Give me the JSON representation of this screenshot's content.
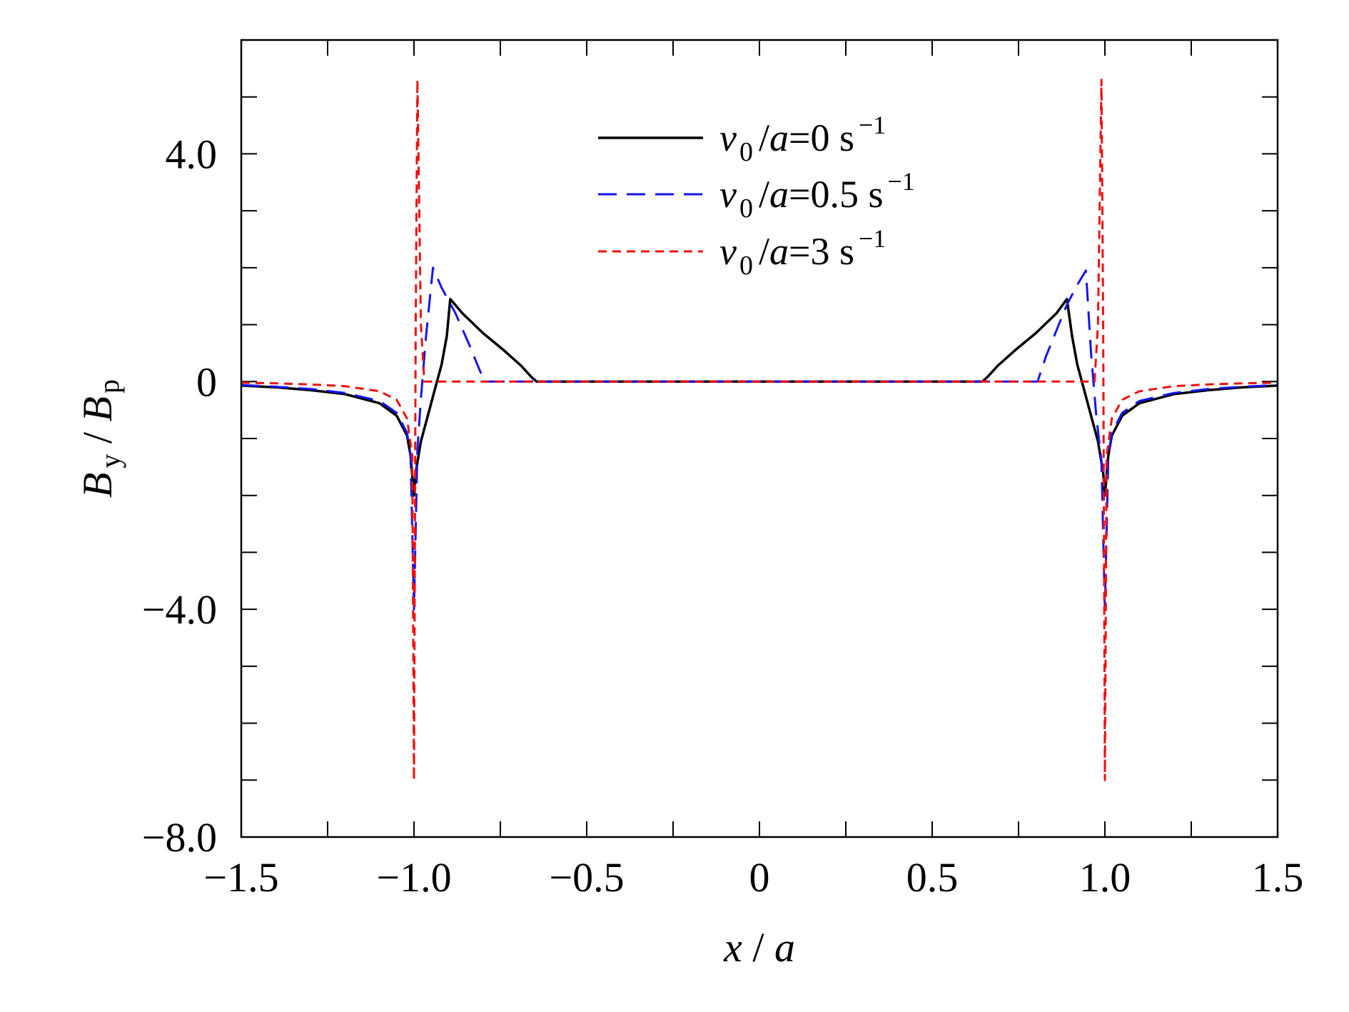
{
  "chart_data": {
    "type": "line",
    "xlabel": {
      "var": "x",
      "sep": " / ",
      "den": "a"
    },
    "ylabel": {
      "var": "B",
      "var_sub": "y",
      "sep": " / ",
      "den": "B",
      "den_sub": "p"
    },
    "xlim": [
      -1.5,
      1.5
    ],
    "ylim": [
      -8.0,
      6.0
    ],
    "x_ticks": [
      {
        "value": -1.5,
        "label": "−1.5"
      },
      {
        "value": -1.0,
        "label": "−1.0"
      },
      {
        "value": -0.5,
        "label": "−0.5"
      },
      {
        "value": 0,
        "label": "0"
      },
      {
        "value": 0.5,
        "label": "0.5"
      },
      {
        "value": 1.0,
        "label": "1.0"
      },
      {
        "value": 1.5,
        "label": "1.5"
      }
    ],
    "x_minor_ticks": [
      -1.25,
      -0.75,
      -0.25,
      0.25,
      0.75,
      1.25
    ],
    "y_ticks": [
      {
        "value": 4.0,
        "label": "4.0"
      },
      {
        "value": 0,
        "label": "0"
      },
      {
        "value": -4.0,
        "label": "−4.0"
      },
      {
        "value": -8.0,
        "label": "−8.0"
      }
    ],
    "y_minor_ticks": [
      5,
      3,
      2,
      1,
      -1,
      -2,
      -3,
      -5,
      -6,
      -7
    ],
    "grid": false,
    "legend_position": "top-center",
    "series": [
      {
        "legend": {
          "v": "v",
          "sub": "0",
          "mid": "/",
          "a": "a",
          "eq": "=0 s",
          "sup": "−1"
        },
        "color": "#000000",
        "dash": "solid",
        "points": [
          [
            -1.5,
            -0.07
          ],
          [
            -1.4,
            -0.1
          ],
          [
            -1.3,
            -0.15
          ],
          [
            -1.2,
            -0.22
          ],
          [
            -1.1,
            -0.38
          ],
          [
            -1.05,
            -0.6
          ],
          [
            -1.02,
            -0.95
          ],
          [
            -1.01,
            -1.3
          ],
          [
            -1.0,
            -2.0
          ],
          [
            -0.995,
            -1.6
          ],
          [
            -0.98,
            -1.05
          ],
          [
            -0.96,
            -0.6
          ],
          [
            -0.94,
            -0.15
          ],
          [
            -0.92,
            0.3
          ],
          [
            -0.905,
            0.8
          ],
          [
            -0.895,
            1.45
          ],
          [
            -0.86,
            1.2
          ],
          [
            -0.8,
            0.85
          ],
          [
            -0.74,
            0.55
          ],
          [
            -0.69,
            0.28
          ],
          [
            -0.66,
            0.08
          ],
          [
            -0.645,
            0.0
          ],
          [
            0.0,
            0.0
          ],
          [
            0.645,
            0.0
          ],
          [
            0.66,
            0.08
          ],
          [
            0.69,
            0.28
          ],
          [
            0.74,
            0.55
          ],
          [
            0.8,
            0.85
          ],
          [
            0.86,
            1.2
          ],
          [
            0.89,
            1.45
          ],
          [
            0.905,
            0.8
          ],
          [
            0.92,
            0.3
          ],
          [
            0.94,
            -0.15
          ],
          [
            0.96,
            -0.6
          ],
          [
            0.98,
            -1.05
          ],
          [
            0.995,
            -1.6
          ],
          [
            1.0,
            -2.0
          ],
          [
            1.01,
            -1.3
          ],
          [
            1.02,
            -0.95
          ],
          [
            1.05,
            -0.6
          ],
          [
            1.1,
            -0.38
          ],
          [
            1.2,
            -0.22
          ],
          [
            1.3,
            -0.15
          ],
          [
            1.4,
            -0.1
          ],
          [
            1.5,
            -0.07
          ]
        ]
      },
      {
        "legend": {
          "v": "v",
          "sub": "0",
          "mid": "/",
          "a": "a",
          "eq": "=0.5 s",
          "sup": "−1"
        },
        "color": "#1515ee",
        "dash": "26,14",
        "points": [
          [
            -1.5,
            -0.06
          ],
          [
            -1.4,
            -0.09
          ],
          [
            -1.3,
            -0.13
          ],
          [
            -1.2,
            -0.2
          ],
          [
            -1.1,
            -0.34
          ],
          [
            -1.05,
            -0.55
          ],
          [
            -1.02,
            -0.9
          ],
          [
            -1.01,
            -1.3
          ],
          [
            -1.0,
            -4.0
          ],
          [
            -0.99,
            -1.2
          ],
          [
            -0.98,
            -0.3
          ],
          [
            -0.965,
            0.8
          ],
          [
            -0.945,
            2.0
          ],
          [
            -0.92,
            1.65
          ],
          [
            -0.88,
            1.2
          ],
          [
            -0.84,
            0.65
          ],
          [
            -0.81,
            0.2
          ],
          [
            -0.795,
            0.0
          ],
          [
            0.0,
            0.0
          ],
          [
            0.805,
            0.0
          ],
          [
            0.83,
            0.45
          ],
          [
            0.86,
            0.9
          ],
          [
            0.89,
            1.35
          ],
          [
            0.92,
            1.7
          ],
          [
            0.945,
            1.95
          ],
          [
            0.96,
            0.5
          ],
          [
            0.975,
            -0.6
          ],
          [
            0.99,
            -1.4
          ],
          [
            1.0,
            -4.0
          ],
          [
            1.01,
            -1.3
          ],
          [
            1.02,
            -0.9
          ],
          [
            1.05,
            -0.55
          ],
          [
            1.1,
            -0.34
          ],
          [
            1.2,
            -0.2
          ],
          [
            1.3,
            -0.13
          ],
          [
            1.4,
            -0.09
          ],
          [
            1.5,
            -0.06
          ]
        ]
      },
      {
        "legend": {
          "v": "v",
          "sub": "0",
          "mid": "/",
          "a": "a",
          "eq": "=3 s",
          "sup": "−1"
        },
        "color": "#ee1111",
        "dash": "12,8",
        "points": [
          [
            -1.5,
            -0.02
          ],
          [
            -1.4,
            -0.03
          ],
          [
            -1.3,
            -0.05
          ],
          [
            -1.2,
            -0.08
          ],
          [
            -1.1,
            -0.17
          ],
          [
            -1.05,
            -0.32
          ],
          [
            -1.02,
            -0.65
          ],
          [
            -1.005,
            -1.3
          ],
          [
            -1.0,
            -7.0
          ],
          [
            -0.995,
            1.0
          ],
          [
            -0.99,
            5.3
          ],
          [
            -0.98,
            1.0
          ],
          [
            -0.97,
            0.0
          ],
          [
            0.0,
            0.0
          ],
          [
            0.97,
            0.0
          ],
          [
            0.98,
            1.0
          ],
          [
            0.99,
            5.3
          ],
          [
            0.995,
            1.0
          ],
          [
            1.0,
            -7.0
          ],
          [
            1.005,
            -1.3
          ],
          [
            1.02,
            -0.65
          ],
          [
            1.05,
            -0.32
          ],
          [
            1.1,
            -0.17
          ],
          [
            1.2,
            -0.08
          ],
          [
            1.3,
            -0.05
          ],
          [
            1.4,
            -0.03
          ],
          [
            1.5,
            -0.02
          ]
        ]
      }
    ]
  }
}
